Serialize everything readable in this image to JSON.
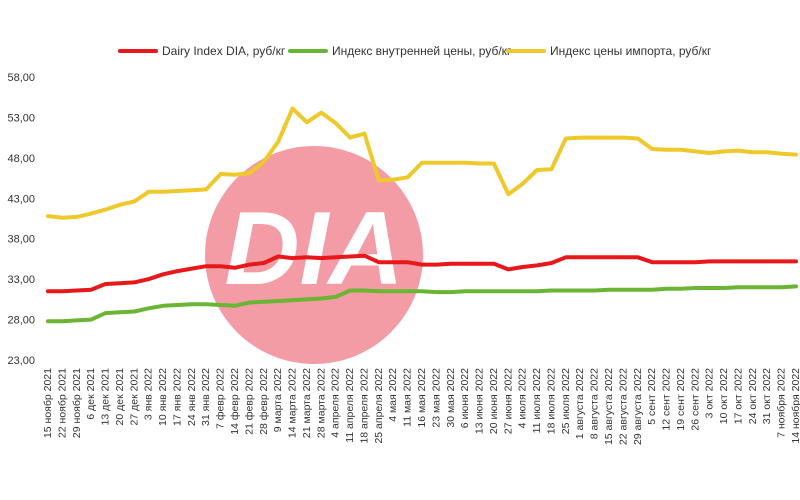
{
  "chart_data": {
    "type": "line",
    "title": "",
    "xlabel": "",
    "ylabel": "",
    "ylim": [
      23,
      58
    ],
    "yticks": [
      "23,00",
      "28,00",
      "33,00",
      "38,00",
      "43,00",
      "48,00",
      "53,00",
      "58,00"
    ],
    "grid": false,
    "legend_position": "top",
    "categories": [
      "15 ноябр 2021",
      "22 ноябр 2021",
      "29 ноябр 2021",
      "6 дек 2021",
      "13 дек 2021",
      "20 дек 2021",
      "27 дек 2021",
      "3 янв 2022",
      "10 янв 2022",
      "17 янв 2022",
      "24 янв 2022",
      "31 янв 2022",
      "7 февр 2022",
      "14 февр 2022",
      "21 февр 2022",
      "28 февр 2022",
      "9 марта 2022",
      "14 марта 2022",
      "21 марта 2022",
      "28 марта 2022",
      "4 апреля 2022",
      "11 апреля 2022",
      "18 апреля 2022",
      "25 апреля 2022",
      "4 мая 2022",
      "11 мая 2022",
      "16 мая 2022",
      "23 мая 2022",
      "30 мая 2022",
      "6 июня 2022",
      "13 июня 2022",
      "20 июня 2022",
      "27 июня 2022",
      "4 июля 2022",
      "11 июля 2022",
      "18 июля 2022",
      "25 июля 2022",
      "1 августа 2022",
      "8 августа 2022",
      "15 августа 2022",
      "22 августа 2022",
      "29 августа 2022",
      "5 сент 2022",
      "12 сент 2022",
      "19 сент 2022",
      "26 сент 2022",
      "3 окт 2022",
      "10 окт 2022",
      "17 окт 2022",
      "24 окт 2022",
      "31 окт 2022",
      "7 ноября 2022",
      "14 ноября 2022"
    ],
    "series": [
      {
        "name": "Dairy Index DIA,  руб/кг",
        "color": "#e8171a",
        "values": [
          31.5,
          31.5,
          31.6,
          31.7,
          32.4,
          32.5,
          32.6,
          33.0,
          33.6,
          34.0,
          34.3,
          34.6,
          34.6,
          34.4,
          34.8,
          35.0,
          35.8,
          35.6,
          35.7,
          35.6,
          35.7,
          35.8,
          35.9,
          35.1,
          35.1,
          35.1,
          34.8,
          34.8,
          34.9,
          34.9,
          34.9,
          34.9,
          34.2,
          34.5,
          34.7,
          35.0,
          35.7,
          35.7,
          35.7,
          35.7,
          35.7,
          35.7,
          35.1,
          35.1,
          35.1,
          35.1,
          35.2,
          35.2,
          35.2,
          35.2,
          35.2,
          35.2,
          35.2
        ]
      },
      {
        "name": "Индекс внутренней цены, руб/кг",
        "color": "#6ab534",
        "values": [
          27.8,
          27.8,
          27.9,
          28.0,
          28.8,
          28.9,
          29.0,
          29.4,
          29.7,
          29.8,
          29.9,
          29.9,
          29.8,
          29.7,
          30.1,
          30.2,
          30.3,
          30.4,
          30.5,
          30.6,
          30.8,
          31.6,
          31.6,
          31.5,
          31.5,
          31.5,
          31.5,
          31.4,
          31.4,
          31.5,
          31.5,
          31.5,
          31.5,
          31.5,
          31.5,
          31.6,
          31.6,
          31.6,
          31.6,
          31.7,
          31.7,
          31.7,
          31.7,
          31.8,
          31.8,
          31.9,
          31.9,
          31.9,
          32.0,
          32.0,
          32.0,
          32.0,
          32.1
        ]
      },
      {
        "name": "Индекс цены импорта, руб/кг",
        "color": "#efc82a",
        "values": [
          40.8,
          40.6,
          40.7,
          41.1,
          41.6,
          42.2,
          42.6,
          43.8,
          43.8,
          43.9,
          44.0,
          44.1,
          46.0,
          45.9,
          46.1,
          47.5,
          50.0,
          54.1,
          52.4,
          53.6,
          52.3,
          50.5,
          51.0,
          45.2,
          45.3,
          45.6,
          47.4,
          47.4,
          47.4,
          47.4,
          47.3,
          47.3,
          43.5,
          44.8,
          46.5,
          46.6,
          50.4,
          50.5,
          50.5,
          50.5,
          50.5,
          50.4,
          49.1,
          49.0,
          49.0,
          48.8,
          48.6,
          48.8,
          48.9,
          48.7,
          48.7,
          48.5,
          48.4
        ]
      }
    ]
  }
}
